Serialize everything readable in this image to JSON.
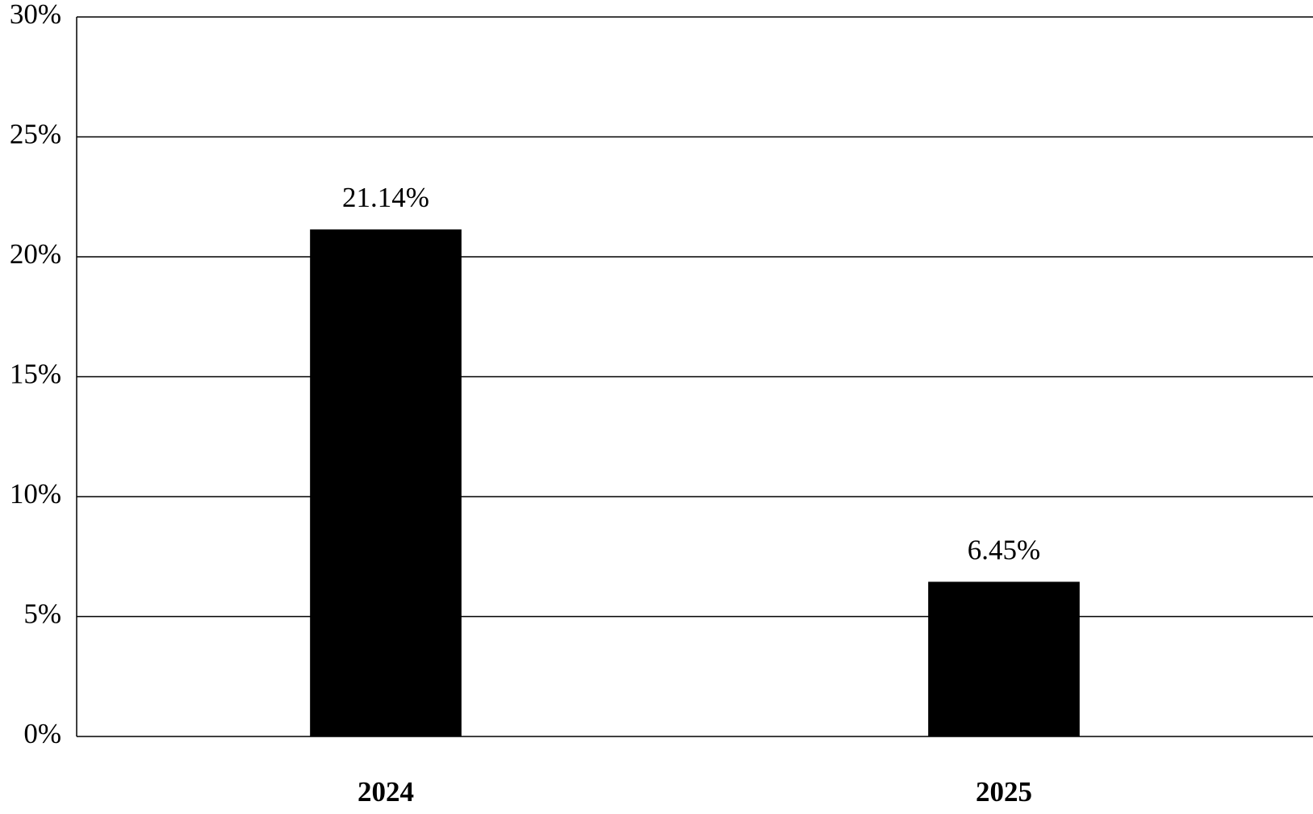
{
  "chart_data": {
    "type": "bar",
    "categories": [
      "2024",
      "2025"
    ],
    "values": [
      21.14,
      6.45
    ],
    "value_labels": [
      "21.14%",
      "6.45%"
    ],
    "color": "#000000",
    "ylim": [
      0,
      30
    ],
    "yticks": [
      {
        "value": 0,
        "label": "0%"
      },
      {
        "value": 5,
        "label": "5%"
      },
      {
        "value": 10,
        "label": "10%"
      },
      {
        "value": 15,
        "label": "15%"
      },
      {
        "value": 20,
        "label": "20%"
      },
      {
        "value": 25,
        "label": "25%"
      },
      {
        "value": 30,
        "label": "30%"
      }
    ],
    "grid": true
  }
}
